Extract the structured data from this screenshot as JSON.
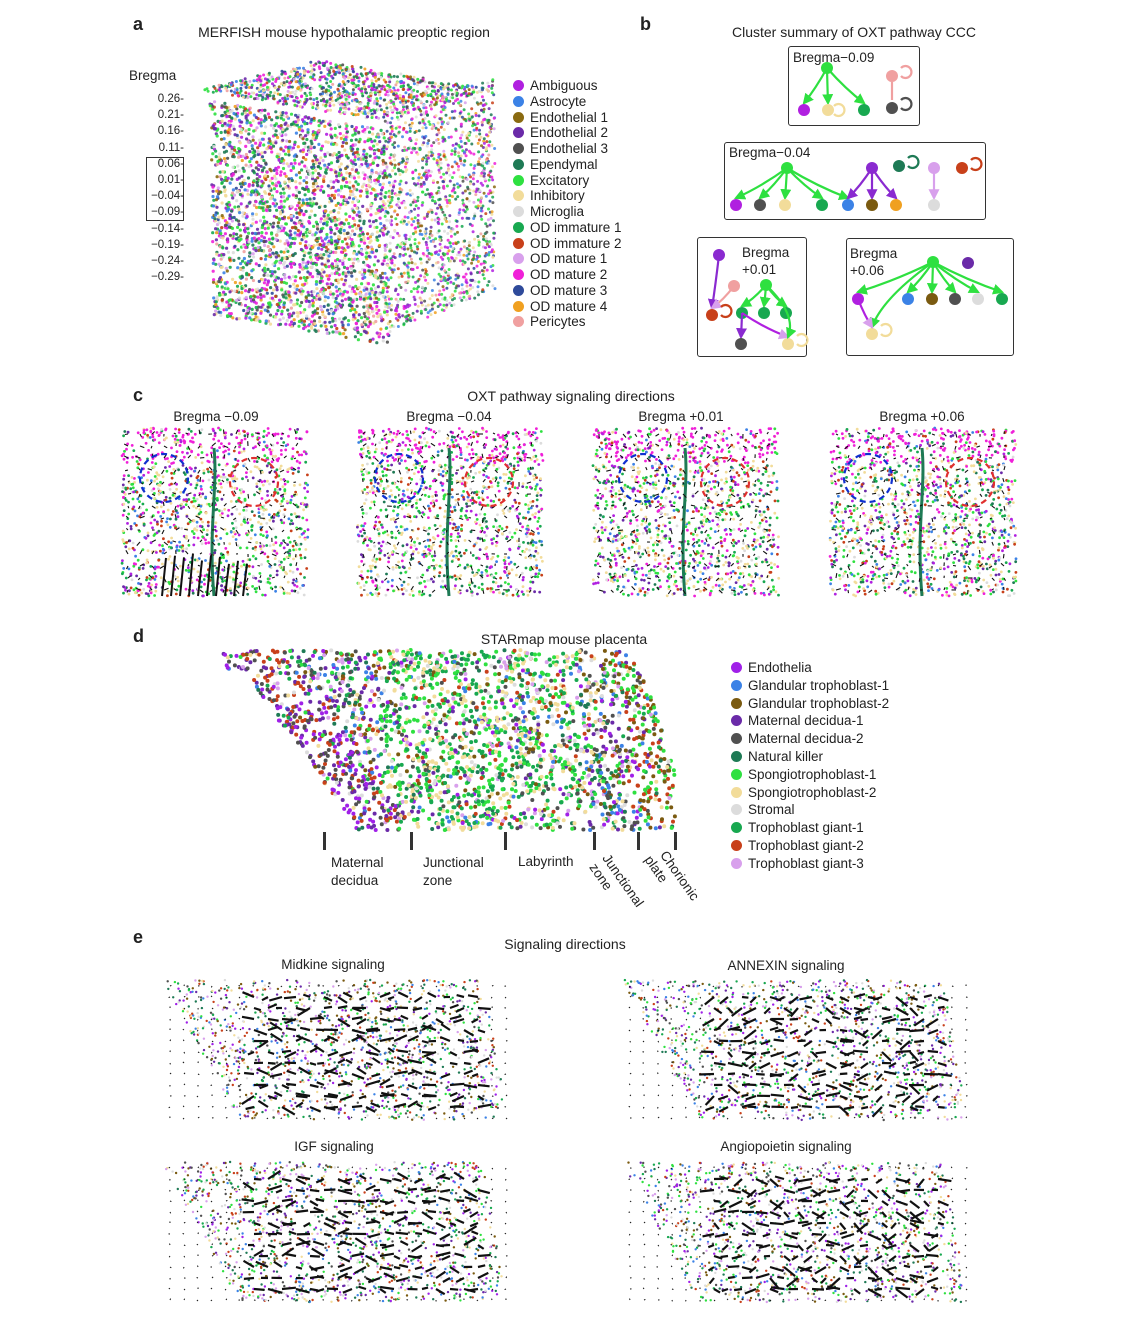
{
  "panel_a": {
    "letter": "a",
    "title": "MERFISH mouse hypothalamic preoptic region",
    "axis_label": "Bregma",
    "ticks": [
      "0.26",
      "0.21",
      "0.16",
      "0.11",
      "0.06",
      "0.01",
      "−0.04",
      "−0.09",
      "−0.14",
      "−0.19",
      "−0.24",
      "−0.29"
    ],
    "legend": [
      {
        "label": "Ambiguous",
        "color": "#b020e0"
      },
      {
        "label": "Astrocyte",
        "color": "#3b82e6"
      },
      {
        "label": "Endothelial 1",
        "color": "#8a6a10"
      },
      {
        "label": "Endothelial 2",
        "color": "#6a2aa8"
      },
      {
        "label": "Endothelial 3",
        "color": "#505050"
      },
      {
        "label": "Ependymal",
        "color": "#1e7a55"
      },
      {
        "label": "Excitatory",
        "color": "#2ee040"
      },
      {
        "label": "Inhibitory",
        "color": "#f2dc9a"
      },
      {
        "label": "Microglia",
        "color": "#dcdcdc"
      },
      {
        "label": "OD immature 1",
        "color": "#18a850"
      },
      {
        "label": "OD immature 2",
        "color": "#c8401a"
      },
      {
        "label": "OD mature 1",
        "color": "#d8a0ec"
      },
      {
        "label": "OD mature 2",
        "color": "#f020d8"
      },
      {
        "label": "OD mature 3",
        "color": "#2e4a9a"
      },
      {
        "label": "OD mature 4",
        "color": "#f0a020"
      },
      {
        "label": "Pericytes",
        "color": "#f0a0a0"
      }
    ]
  },
  "panel_b": {
    "letter": "b",
    "title": "Cluster summary of OXT pathway CCC",
    "boxes": [
      {
        "label": "Bregma−0.09"
      },
      {
        "label": "Bregma−0.04"
      },
      {
        "label": "Bregma\n+0.01"
      },
      {
        "label": "Bregma\n+0.06"
      }
    ]
  },
  "panel_c": {
    "letter": "c",
    "title": "OXT pathway signaling directions",
    "subplots": [
      "Bregma −0.09",
      "Bregma −0.04",
      "Bregma +0.01",
      "Bregma +0.06"
    ]
  },
  "panel_d": {
    "letter": "d",
    "title": "STARmap mouse placenta",
    "zones": [
      "Maternal\ndecidua",
      "Junctional\nzone",
      "Labyrinth",
      "Junctional\nzone",
      "plate",
      "Chorionic"
    ],
    "legend": [
      {
        "label": "Endothelia",
        "color": "#a020e8"
      },
      {
        "label": "Glandular trophoblast-1",
        "color": "#3b82e6"
      },
      {
        "label": "Glandular trophoblast-2",
        "color": "#7a5a10"
      },
      {
        "label": "Maternal decidua-1",
        "color": "#6a2aa8"
      },
      {
        "label": "Maternal decidua-2",
        "color": "#505050"
      },
      {
        "label": "Natural killer",
        "color": "#1e7a55"
      },
      {
        "label": "Spongiotrophoblast-1",
        "color": "#2ee040"
      },
      {
        "label": "Spongiotrophoblast-2",
        "color": "#f2dc9a"
      },
      {
        "label": "Stromal",
        "color": "#dcdcdc"
      },
      {
        "label": "Trophoblast giant-1",
        "color": "#18a850"
      },
      {
        "label": "Trophoblast giant-2",
        "color": "#c8401a"
      },
      {
        "label": "Trophoblast giant-3",
        "color": "#d8a0ec"
      }
    ]
  },
  "panel_e": {
    "letter": "e",
    "title": "Signaling directions",
    "subplots": [
      "Midkine signaling",
      "ANNEXIN signaling",
      "IGF signaling",
      "Angiopoietin signaling"
    ]
  }
}
